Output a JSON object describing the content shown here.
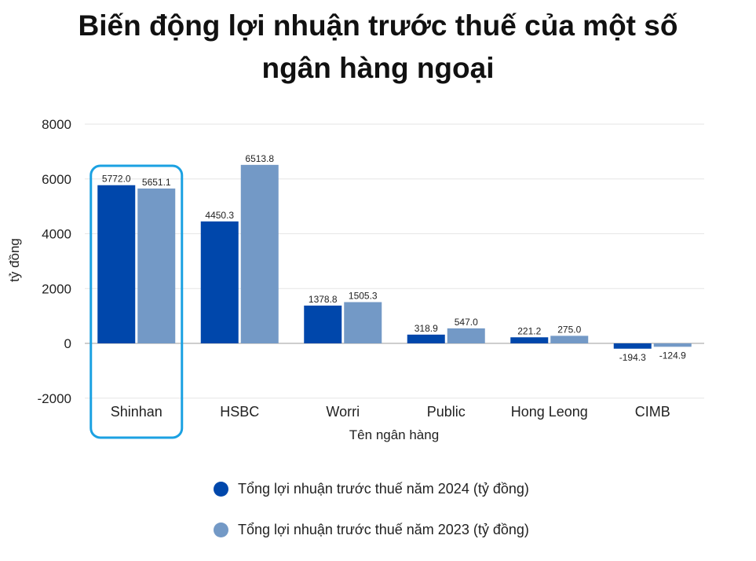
{
  "chart_data": {
    "type": "bar",
    "title_lines": [
      "Biến động lợi nhuận trước thuế của một số",
      "ngân hàng ngoại"
    ],
    "xlabel": "Tên ngân hàng",
    "ylabel": "tỷ đồng",
    "ylim": [
      -2000,
      8000
    ],
    "yticks": [
      8000,
      6000,
      4000,
      2000,
      0,
      -2000
    ],
    "grid": true,
    "legend_position": "bottom",
    "categories": [
      "Shinhan",
      "HSBC",
      "Worri",
      "Public",
      "Hong Leong",
      "CIMB"
    ],
    "highlighted_category": "Shinhan",
    "series": [
      {
        "name": "Tổng lợi nhuận trước thuế năm 2024 (tỷ đồng)",
        "color": "#0047AB",
        "values": [
          5772.0,
          4450.3,
          1378.8,
          318.9,
          221.2,
          -194.3
        ],
        "labels": [
          "5772.0",
          "4450.3",
          "1378.8",
          "318.9",
          "221.2",
          "-194.3"
        ]
      },
      {
        "name": "Tổng lợi nhuận trước thuế năm 2023 (tỷ đồng)",
        "color": "#7399C6",
        "values": [
          5651.1,
          6513.8,
          1505.3,
          547.0,
          275.0,
          -124.9
        ],
        "labels": [
          "5651.1",
          "6513.8",
          "1505.3",
          "547.0",
          "275.0",
          "-124.9"
        ]
      }
    ],
    "highlight_color": "#1BA1E2",
    "grid_color": "#E6E6E6",
    "zero_line_color": "#9E9E9E"
  }
}
